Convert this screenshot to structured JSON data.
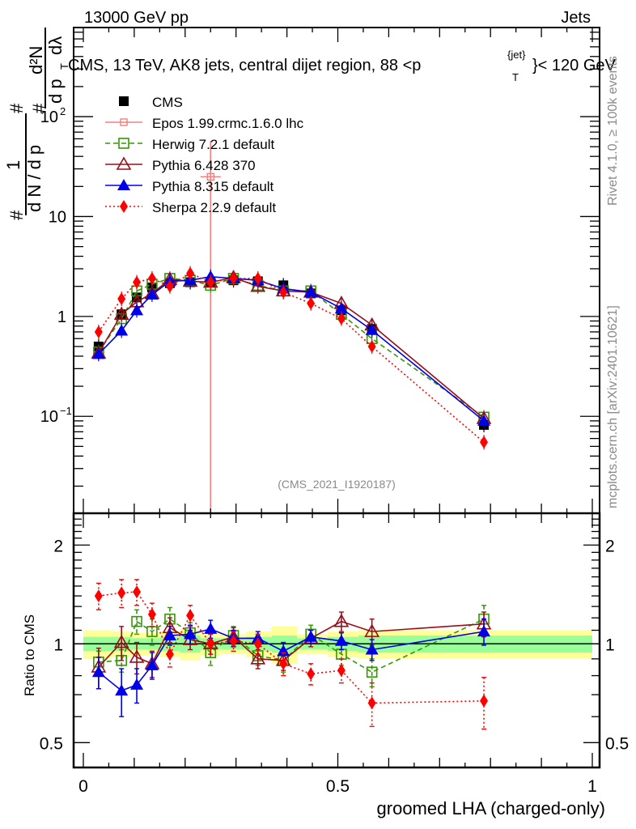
{
  "header": {
    "left": "13000 GeV pp",
    "right": "Jets"
  },
  "side_labels": {
    "rivet": "Rivet 4.1.0, ≥ 100k events",
    "mcplots": "mcplots.cern.ch [arXiv:2401.10621]"
  },
  "chart_data": [
    {
      "type": "line",
      "title": "CMS, 13 TeV, AK8 jets, central dijet region, 88 <p_T^{jet}< 120 GeV",
      "title_parts": {
        "main": "CMS, 13 TeV, AK8 jets, central dijet region, 88 <p",
        "sup": "{jet}",
        "sub": "T",
        "tail": "}< 120 GeV"
      },
      "ylabel": "1/(dN/dp_T) d²N/(dp_T dλ)",
      "ylabel_parts": {
        "num_top": "d²N",
        "den_top": "d p",
        "den_sub": "T",
        "den_tail": "dλ",
        "num_left": "1",
        "den_left": "d N / d p",
        "hash": "#"
      },
      "xlabel": "",
      "yscale": "log",
      "ylim": [
        0.0107,
        780
      ],
      "xlim": [
        -0.02,
        1.015
      ],
      "ytick_labels": [
        {
          "v": 100,
          "label": "10",
          "sup": "2"
        },
        {
          "v": 10,
          "label": "10"
        },
        {
          "v": 1,
          "label": "1"
        },
        {
          "v": 0.1,
          "label": "10",
          "sup": "−1"
        }
      ],
      "analysis_tag": "(CMS_2021_I1920187)",
      "legend": {
        "placement": "top-left",
        "entries": [
          "CMS",
          "Epos 1.99.crmc.1.6.0 lhc",
          "Herwig 7.2.1 default",
          "Pythia 6.428 370",
          "Pythia 8.315 default",
          "Sherpa 2.2.9 default"
        ]
      },
      "x": [
        0.03,
        0.075,
        0.105,
        0.135,
        0.17,
        0.21,
        0.25,
        0.295,
        0.343,
        0.393,
        0.447,
        0.507,
        0.567,
        0.787
      ],
      "series": [
        {
          "name": "CMS",
          "color": "#000000",
          "marker": "square-filled",
          "line": "none",
          "values": [
            0.5,
            1.05,
            1.55,
            1.95,
            2.15,
            2.2,
            2.2,
            2.3,
            2.25,
            2.05,
            1.7,
            1.15,
            0.75,
            0.082
          ]
        },
        {
          "name": "Epos 1.99.crmc.1.6.0 lhc",
          "color": "#f08080",
          "marker": "square-cross-open",
          "line": "solid",
          "points": [
            {
              "x": 0.25,
              "y": 25,
              "yerr_low": 0.02,
              "yerr_high": 500,
              "xerr": 0.02
            }
          ]
        },
        {
          "name": "Herwig 7.2.1 default",
          "color": "#339900",
          "marker": "square-open",
          "line": "dashed",
          "values": [
            0.44,
            0.95,
            1.8,
            2.1,
            2.4,
            2.3,
            2.05,
            2.4,
            2.05,
            1.8,
            1.8,
            1.05,
            0.6,
            0.098
          ]
        },
        {
          "name": "Pythia 6.428 370",
          "color": "#990d1a",
          "marker": "triangle-open",
          "line": "solid",
          "values": [
            0.43,
            1.05,
            1.4,
            1.7,
            2.35,
            2.25,
            2.2,
            2.45,
            2.0,
            1.8,
            1.75,
            1.35,
            0.82,
            0.095
          ]
        },
        {
          "name": "Pythia 8.315 default",
          "color": "#0000e6",
          "marker": "triangle-filled",
          "line": "solid",
          "values": [
            0.42,
            0.72,
            1.15,
            1.65,
            2.25,
            2.3,
            2.5,
            2.4,
            2.3,
            1.9,
            1.75,
            1.2,
            0.73,
            0.09
          ]
        },
        {
          "name": "Sherpa 2.2.9 default",
          "color": "#ff0000",
          "marker": "diamond-filled",
          "line": "dotted",
          "values": [
            0.7,
            1.5,
            2.2,
            2.4,
            2.0,
            2.7,
            2.2,
            2.4,
            2.4,
            1.75,
            1.35,
            0.95,
            0.5,
            0.055
          ]
        }
      ]
    },
    {
      "type": "line",
      "title": "",
      "ylabel": "Ratio to CMS",
      "xlabel": "groomed LHA (charged-only)",
      "yscale": "log",
      "ylim": [
        0.42,
        2.5
      ],
      "xlim": [
        -0.02,
        1.015
      ],
      "ytick_labels": [
        {
          "v": 2,
          "label": "2"
        },
        {
          "v": 1,
          "label": "1"
        },
        {
          "v": 0.5,
          "label": "0.5"
        }
      ],
      "xtick_labels": [
        {
          "v": 0,
          "label": "0"
        },
        {
          "v": 0.5,
          "label": "0.5"
        },
        {
          "v": 1,
          "label": "1"
        }
      ],
      "x": [
        0.03,
        0.075,
        0.105,
        0.135,
        0.17,
        0.21,
        0.25,
        0.295,
        0.343,
        0.393,
        0.447,
        0.507,
        0.567,
        0.787
      ],
      "bands": {
        "edges": [
          0.0,
          0.055,
          0.095,
          0.12,
          0.15,
          0.19,
          0.23,
          0.27,
          0.32,
          0.37,
          0.42,
          0.48,
          0.54,
          0.6,
          1.0
        ],
        "stat": [
          0.05,
          0.05,
          0.04,
          0.04,
          0.05,
          0.06,
          0.04,
          0.04,
          0.05,
          0.06,
          0.04,
          0.05,
          0.06,
          0.06
        ],
        "total": [
          0.1,
          0.09,
          0.08,
          0.08,
          0.09,
          0.11,
          0.08,
          0.07,
          0.09,
          0.13,
          0.07,
          0.09,
          0.1,
          0.1
        ]
      },
      "series": [
        {
          "name": "Herwig 7.2.1 default",
          "color": "#339900",
          "marker": "square-open",
          "line": "dashed",
          "values": [
            0.88,
            0.89,
            1.17,
            1.09,
            1.19,
            1.08,
            0.94,
            1.06,
            0.92,
            0.89,
            1.07,
            0.93,
            0.82,
            1.19
          ],
          "err": [
            0.07,
            0.07,
            0.1,
            0.1,
            0.1,
            0.08,
            0.08,
            0.07,
            0.06,
            0.07,
            0.07,
            0.07,
            0.08,
            0.12
          ]
        },
        {
          "name": "Pythia 6.428 370",
          "color": "#990d1a",
          "marker": "triangle-open",
          "line": "solid",
          "values": [
            0.85,
            1.01,
            0.91,
            0.87,
            1.12,
            1.03,
            1.0,
            1.05,
            0.9,
            0.89,
            1.04,
            1.17,
            1.09,
            1.15
          ],
          "err": [
            0.12,
            0.12,
            0.1,
            0.08,
            0.08,
            0.07,
            0.07,
            0.07,
            0.06,
            0.06,
            0.06,
            0.08,
            0.1,
            0.1
          ]
        },
        {
          "name": "Pythia 8.315 default",
          "color": "#0000e6",
          "marker": "triangle-filled",
          "line": "solid",
          "values": [
            0.82,
            0.72,
            0.75,
            0.86,
            1.06,
            1.07,
            1.11,
            1.04,
            1.04,
            0.95,
            1.05,
            1.02,
            0.96,
            1.09
          ],
          "err": [
            0.09,
            0.12,
            0.09,
            0.08,
            0.07,
            0.07,
            0.07,
            0.06,
            0.05,
            0.06,
            0.05,
            0.06,
            0.07,
            0.1
          ]
        },
        {
          "name": "Sherpa 2.2.9 default",
          "color": "#ff0000",
          "marker": "diamond-filled",
          "line": "dotted",
          "values": [
            1.4,
            1.43,
            1.44,
            1.23,
            0.93,
            1.22,
            1.0,
            1.02,
            1.0,
            0.87,
            0.81,
            0.83,
            0.66,
            0.67
          ],
          "err": [
            0.13,
            0.14,
            0.13,
            0.1,
            0.08,
            0.09,
            0.07,
            0.07,
            0.07,
            0.07,
            0.06,
            0.07,
            0.1,
            0.12
          ]
        }
      ]
    }
  ]
}
